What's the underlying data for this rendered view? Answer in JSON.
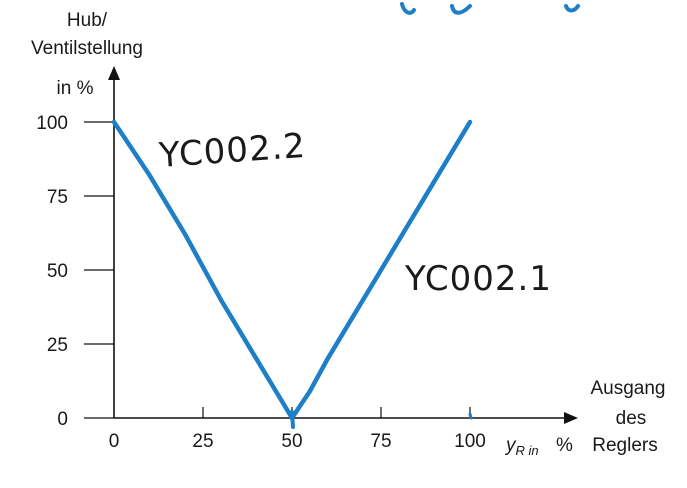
{
  "chart_data": {
    "type": "line",
    "y_axis_title": [
      "Hub/",
      "Ventilstellung",
      "in %"
    ],
    "x_axis_title": {
      "symbol": "y",
      "subscript": "R in",
      "unit": "%",
      "caption": [
        "Ausgang",
        "des",
        "Reglers"
      ]
    },
    "xlim": [
      0,
      100
    ],
    "ylim": [
      0,
      100
    ],
    "x_ticks": [
      "0",
      "25",
      "50",
      "75",
      "100"
    ],
    "y_ticks": [
      "0",
      "25",
      "50",
      "75",
      "100"
    ],
    "series": [
      {
        "name": "YC002.2",
        "color": "#1e7fc8",
        "points": [
          [
            0,
            100
          ],
          [
            10,
            82
          ],
          [
            20,
            62
          ],
          [
            30,
            40
          ],
          [
            40,
            20
          ],
          [
            45,
            10
          ],
          [
            50,
            0
          ]
        ]
      },
      {
        "name": "YC002.1",
        "color": "#1e7fc8",
        "points": [
          [
            50,
            0
          ],
          [
            55,
            9
          ],
          [
            60,
            20
          ],
          [
            70,
            40
          ],
          [
            80,
            60
          ],
          [
            90,
            80
          ],
          [
            100,
            100
          ]
        ]
      }
    ],
    "annotations": [
      "YC002.2",
      "YC002.1"
    ],
    "grid": false
  }
}
